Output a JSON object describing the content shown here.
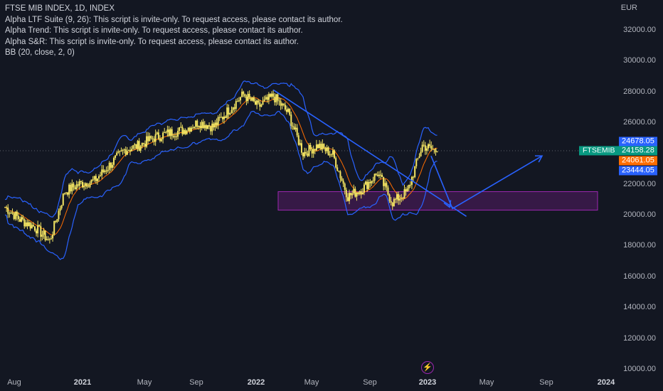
{
  "header": {
    "title": "FTSE MIB INDEX, 1D, INDEX",
    "indicators": [
      "Alpha LTF Suite (9, 26): This script is invite-only. To request access, please contact its author.",
      "Alpha Trend: This script is invite-only. To request access, please contact its author.",
      "Alpha S&R: This script is invite-only. To request access, please contact its author.",
      "BB (20, close, 2, 0)"
    ]
  },
  "currency": "EUR",
  "symbol_tag": "FTSEMIB",
  "price_tags": {
    "bb_upper": {
      "text": "24678.05",
      "value": 24678.05,
      "color": "#2962ff"
    },
    "close": {
      "text": "24158.28",
      "value": 24158.28,
      "color": "#089981"
    },
    "basis": {
      "text": "24061.05",
      "value": 24061.05,
      "color": "#ff6d00"
    },
    "bb_lower": {
      "text": "23444.05",
      "value": 23444.05,
      "color": "#2962ff"
    }
  },
  "price_axis": [
    "32000.00",
    "30000.00",
    "28000.00",
    "26000.00",
    "24000.00",
    "22000.00",
    "20000.00",
    "18000.00",
    "16000.00",
    "14000.00",
    "12000.00",
    "10000.00"
  ],
  "time_axis": [
    {
      "label": "Aug",
      "year": false
    },
    {
      "label": "2021",
      "year": true
    },
    {
      "label": "May",
      "year": false
    },
    {
      "label": "Sep",
      "year": false
    },
    {
      "label": "2022",
      "year": true
    },
    {
      "label": "May",
      "year": false
    },
    {
      "label": "Sep",
      "year": false
    },
    {
      "label": "2023",
      "year": true
    },
    {
      "label": "May",
      "year": false
    },
    {
      "label": "Sep",
      "year": false
    },
    {
      "label": "2024",
      "year": true
    }
  ],
  "colors": {
    "background": "#131722",
    "candles": "#f5e663",
    "bands": "#2962ff",
    "basis": "#ff6d00",
    "drawings": "#2962ff",
    "zone_fill": "#4a1a5a",
    "zone_border": "#9c27b0",
    "flash": "#c026d3"
  },
  "chart_data": {
    "type": "line",
    "title": "FTSE MIB INDEX, 1D, INDEX",
    "ylim": [
      10000,
      33000
    ],
    "x": [
      "2020-07",
      "2020-08",
      "2020-09",
      "2020-10",
      "2020-11",
      "2020-12",
      "2021-01",
      "2021-02",
      "2021-03",
      "2021-04",
      "2021-05",
      "2021-06",
      "2021-07",
      "2021-08",
      "2021-09",
      "2021-10",
      "2021-11",
      "2021-12",
      "2022-01",
      "2022-02",
      "2022-03",
      "2022-04",
      "2022-05",
      "2022-06",
      "2022-07",
      "2022-08",
      "2022-09",
      "2022-10",
      "2022-11",
      "2022-12"
    ],
    "series": [
      {
        "name": "FTSE MIB",
        "values": [
          20500,
          19700,
          19200,
          18300,
          21500,
          22000,
          22200,
          23200,
          24200,
          24500,
          25000,
          25300,
          25500,
          26000,
          25700,
          26800,
          27800,
          27000,
          27700,
          26600,
          24000,
          24500,
          23900,
          21200,
          21700,
          22700,
          20800,
          21500,
          24500,
          24100
        ]
      }
    ],
    "annotations": {
      "support_zone": [
        20300,
        21500
      ],
      "trendline": {
        "from": {
          "x": "2022-01",
          "y": 28100
        },
        "to": {
          "x": "2023-01",
          "y": 19900
        }
      },
      "projection": [
        {
          "x": "2022-12",
          "y": 24000
        },
        {
          "x": "2023-02",
          "y": 20400
        },
        {
          "x": "2023-09",
          "y": 24000
        }
      ]
    },
    "legend": "top-left"
  }
}
